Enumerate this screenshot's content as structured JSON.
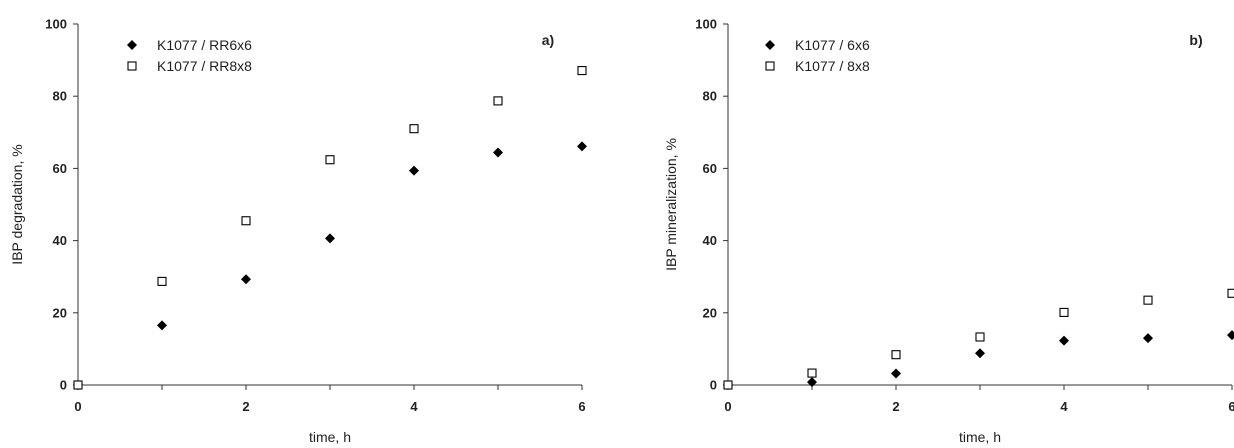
{
  "chart_data": [
    {
      "type": "scatter",
      "panel_label": "a)",
      "xlabel": "time, h",
      "ylabel": "IBP degradation, %",
      "xlim": [
        0,
        6
      ],
      "ylim": [
        0,
        100
      ],
      "xticks": [
        "0",
        "2",
        "4",
        "6"
      ],
      "yticks": [
        "0",
        "20",
        "40",
        "60",
        "80",
        "100"
      ],
      "grid": false,
      "legend_position": "top-left",
      "series": [
        {
          "name": "K1077 / RR6x6",
          "marker": "filled-diamond",
          "color": "#000000",
          "x": [
            0,
            1,
            2,
            3,
            4,
            5,
            6
          ],
          "y": [
            0,
            16.5,
            29.3,
            40.6,
            59.4,
            64.4,
            66.1
          ]
        },
        {
          "name": "K1077 / RR8x8",
          "marker": "open-square",
          "color": "#000000",
          "x": [
            0,
            1,
            2,
            3,
            4,
            5,
            6
          ],
          "y": [
            0,
            28.7,
            45.5,
            62.4,
            71.0,
            78.7,
            87.1
          ]
        }
      ]
    },
    {
      "type": "scatter",
      "panel_label": "b)",
      "xlabel": "time, h",
      "ylabel": "IBP mineralization, %",
      "xlim": [
        0,
        6
      ],
      "ylim": [
        0,
        100
      ],
      "xticks": [
        "0",
        "2",
        "4",
        "6"
      ],
      "yticks": [
        "0",
        "20",
        "40",
        "60",
        "80",
        "100"
      ],
      "grid": false,
      "legend_position": "top-left",
      "series": [
        {
          "name": "K1077 / 6x6",
          "marker": "filled-diamond",
          "color": "#000000",
          "x": [
            0,
            1,
            2,
            3,
            4,
            5,
            6
          ],
          "y": [
            0,
            0.8,
            3.2,
            8.8,
            12.3,
            13.0,
            13.8
          ]
        },
        {
          "name": "K1077 / 8x8",
          "marker": "open-square",
          "color": "#000000",
          "x": [
            0,
            1,
            2,
            3,
            4,
            5,
            6
          ],
          "y": [
            0,
            3.3,
            8.4,
            13.3,
            20.1,
            23.5,
            25.4
          ]
        }
      ]
    }
  ]
}
